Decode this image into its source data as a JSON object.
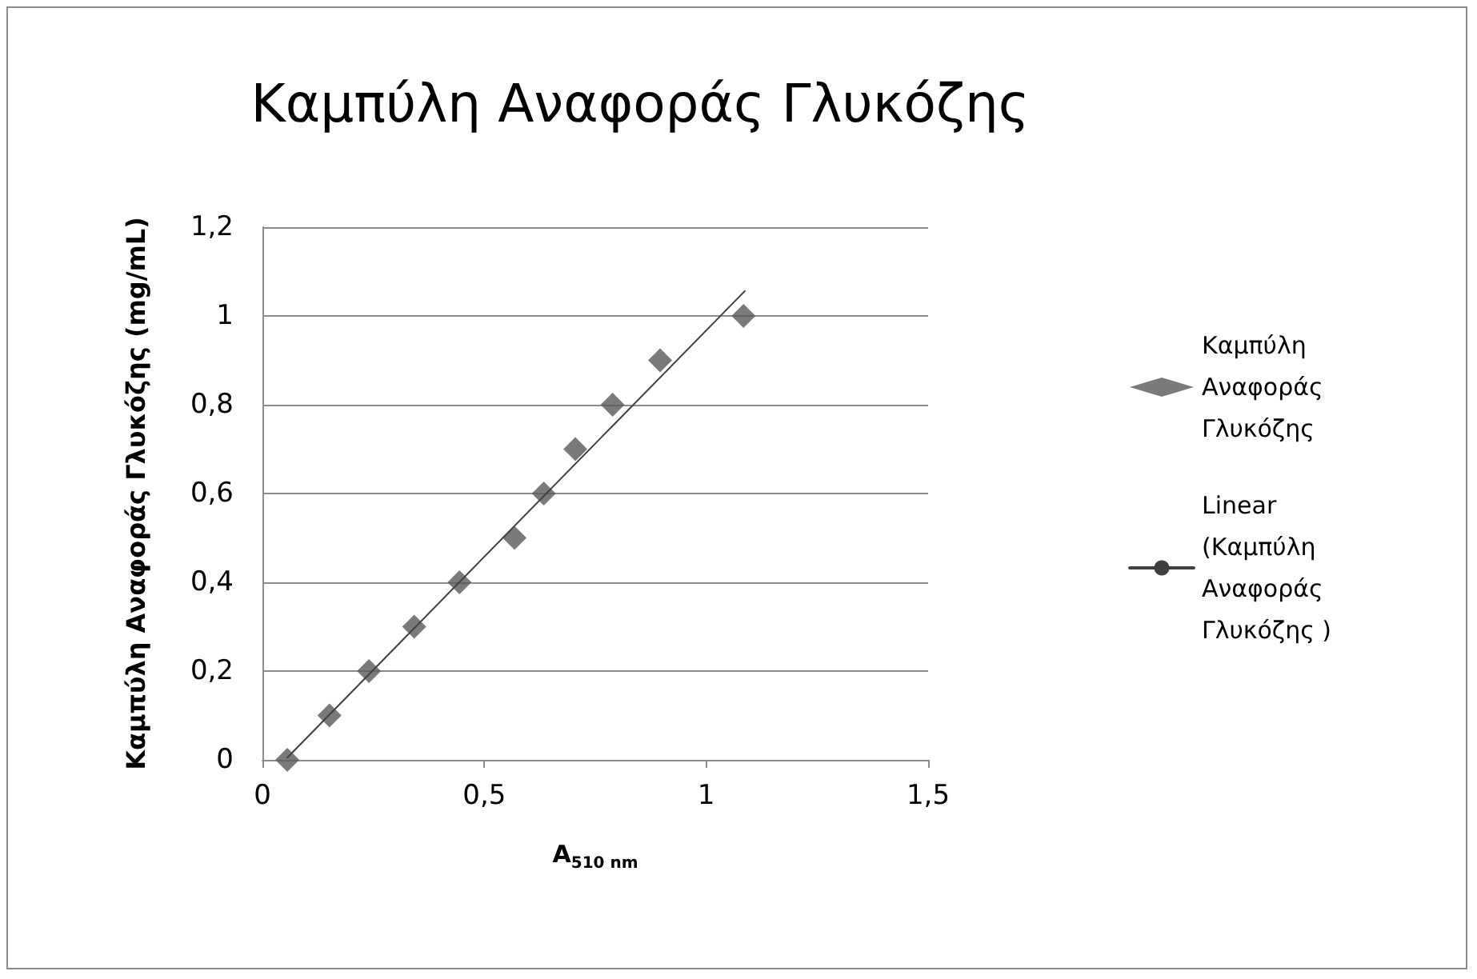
{
  "chart_data": {
    "type": "scatter",
    "title": "Καμπύλη Αναφοράς Γλυκόζης",
    "xlabel": "A$_{510 nm}$",
    "ylabel": "Καμπύλη Αναφοράς Γλυκόζης (mg/mL)",
    "x": [
      0.056,
      0.151,
      0.24,
      0.342,
      0.444,
      0.568,
      0.634,
      0.705,
      0.789,
      0.896,
      1.084
    ],
    "series": [
      {
        "name": "Καμπύλη Αναφοράς Γλυκόζης",
        "color": "#595959",
        "values": [
          0,
          0.1,
          0.2,
          0.3,
          0.4,
          0.5,
          0.6,
          0.7,
          0.8,
          0.9,
          1.0
        ]
      },
      {
        "name": "Linear (Καμπύλη Αναφοράς Γλυκόζης )",
        "type": "line",
        "color": "#404040",
        "marker": "none",
        "line_style": "solid",
        "x": [
          0.056,
          1.087
        ],
        "values": [
          0.005,
          1.056
        ]
      }
    ],
    "xlim": [
      0,
      1.5
    ],
    "xticks": [
      0,
      {
        "value": 0.5,
        "label": "0,5"
      },
      1,
      {
        "value": 1.5,
        "label": "1,5"
      }
    ],
    "ylim": [
      0,
      1.2
    ],
    "yticks": [
      0,
      {
        "value": 0.2,
        "label": "0,2"
      },
      {
        "value": 0.4,
        "label": "0,4"
      },
      {
        "value": 0.6,
        "label": "0,6"
      },
      {
        "value": 0.8,
        "label": "0,8"
      },
      1,
      {
        "value": 1.2,
        "label": "1,2"
      }
    ],
    "grid": "y",
    "legend": "right",
    "marker": "diamond"
  }
}
